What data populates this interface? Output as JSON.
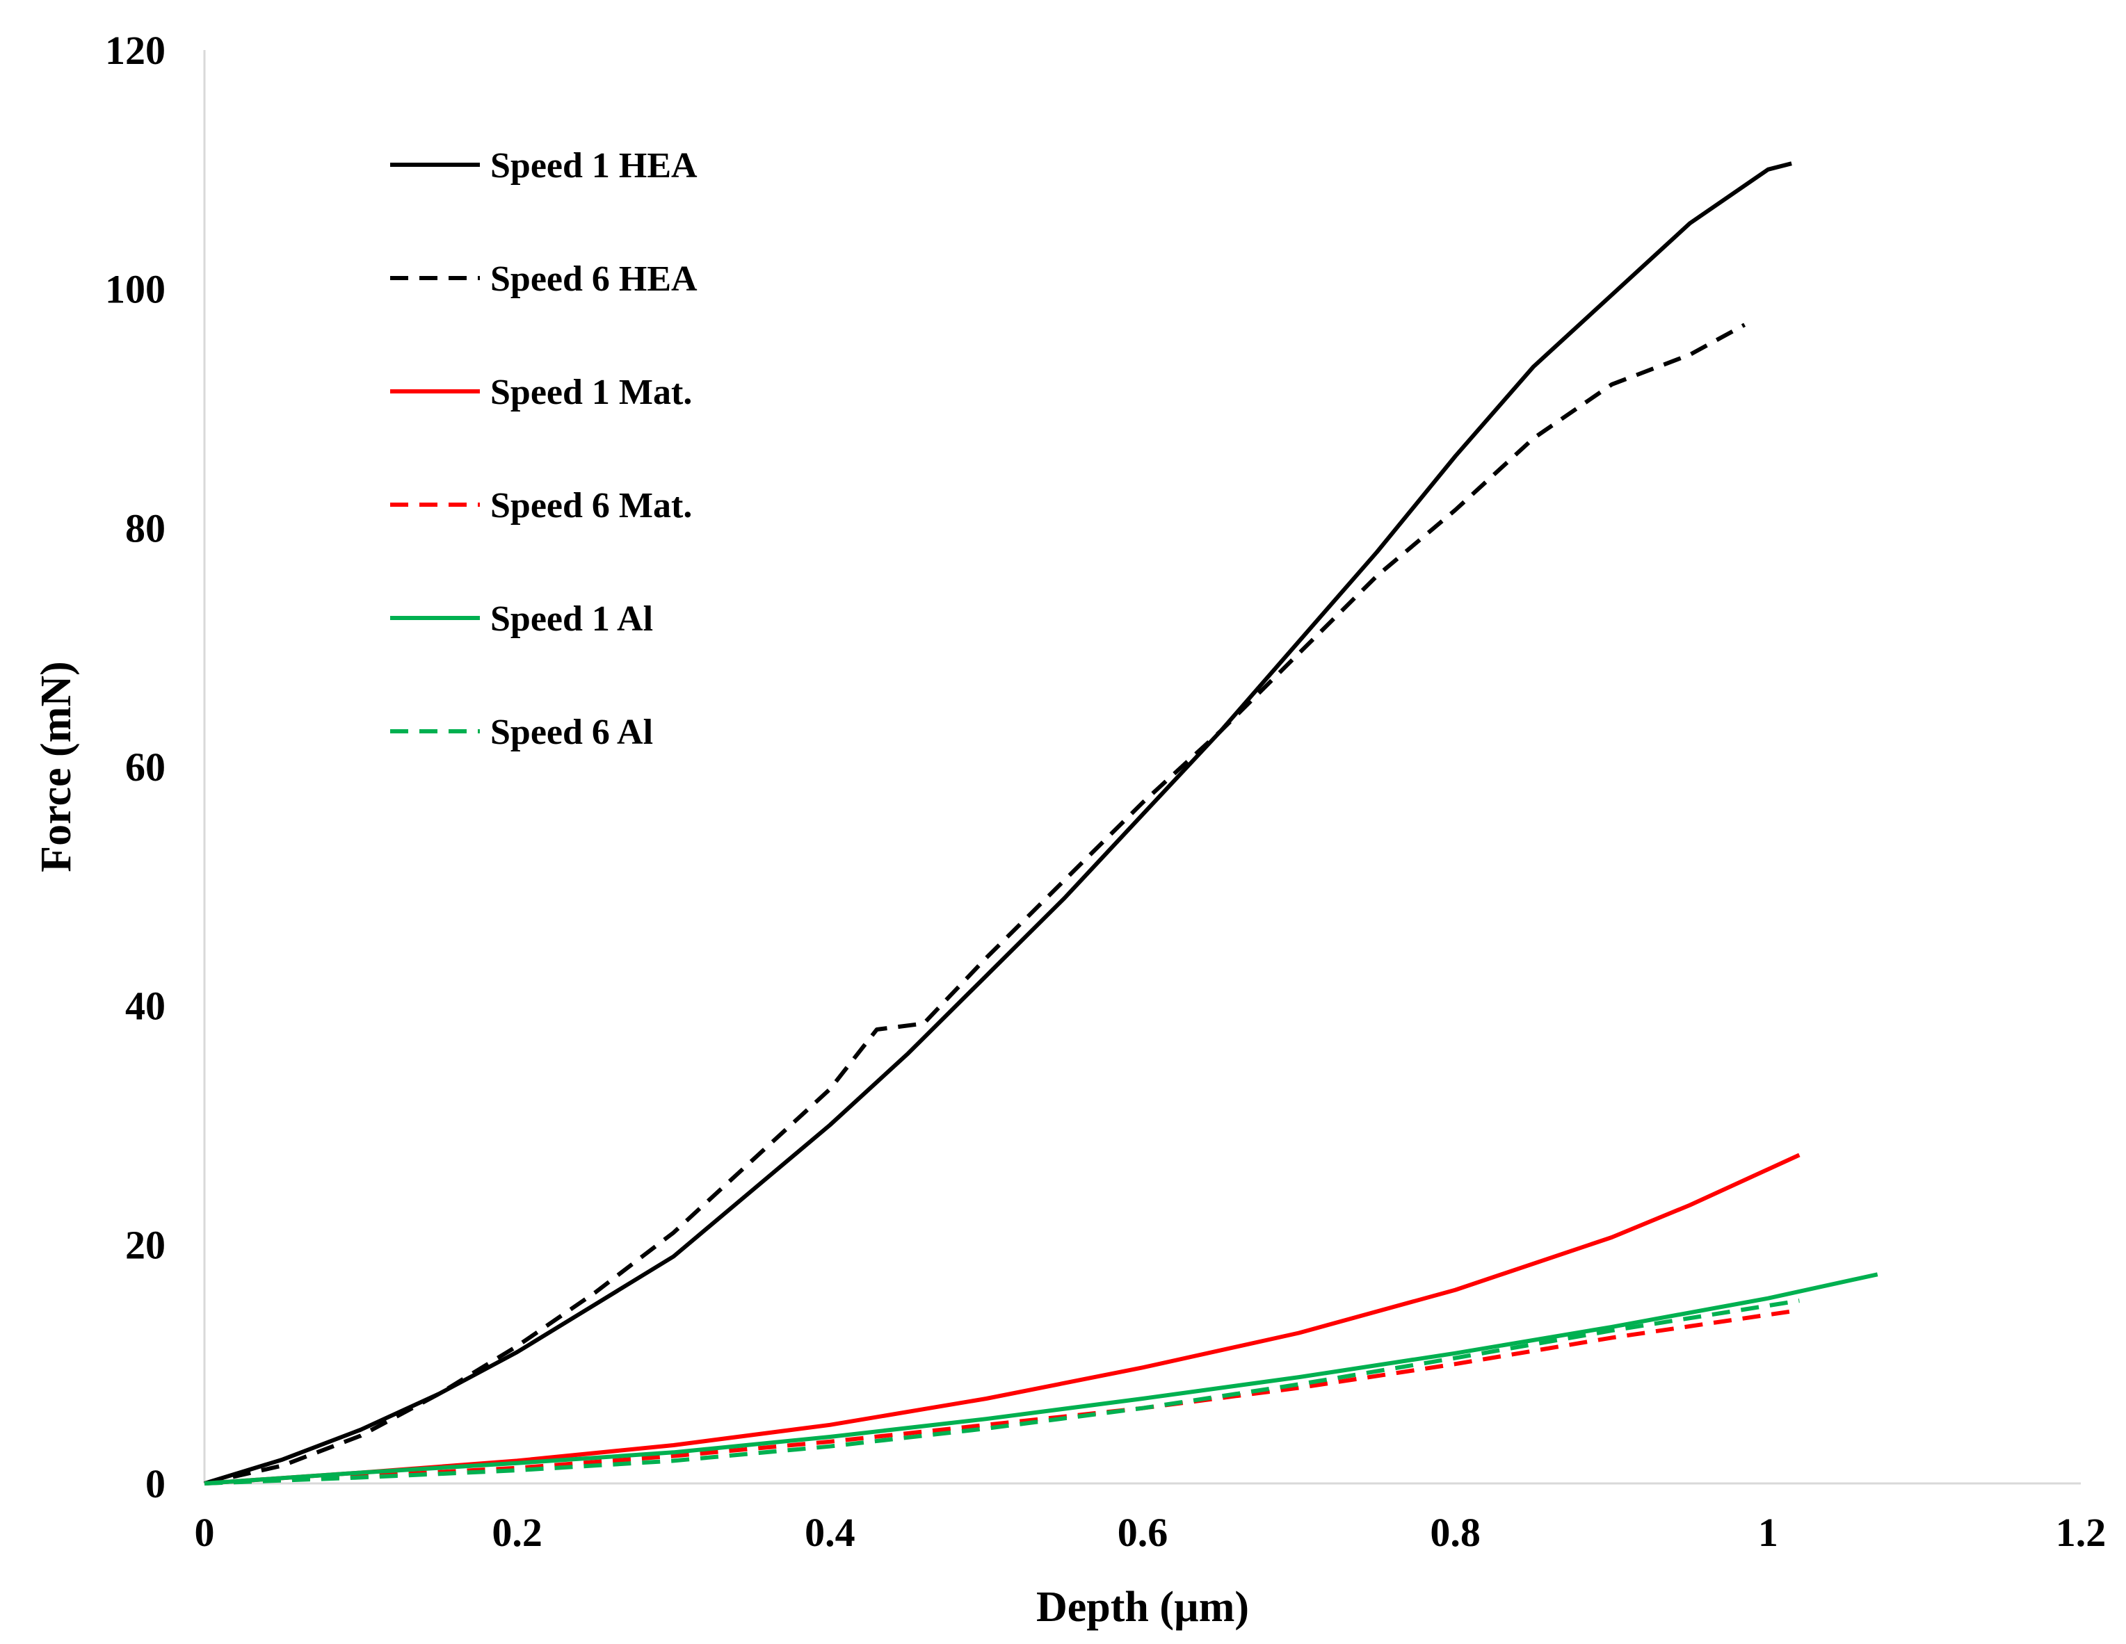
{
  "chart_data": {
    "type": "line",
    "title": "",
    "xlabel": "Depth (µm)",
    "ylabel": "Force (mN)",
    "xlim": [
      0,
      1.2
    ],
    "ylim": [
      0,
      120
    ],
    "xticks": [
      0,
      0.2,
      0.4,
      0.6,
      0.8,
      1,
      1.2
    ],
    "xtick_labels": [
      "0",
      "0.2",
      "0.4",
      "0.6",
      "0.8",
      "1",
      "1.2"
    ],
    "yticks": [
      0,
      20,
      40,
      60,
      80,
      100,
      120
    ],
    "ytick_labels": [
      "0",
      "20",
      "40",
      "60",
      "80",
      "100",
      "120"
    ],
    "grid": false,
    "legend_position": "top-left",
    "series": [
      {
        "name": "Speed 1 HEA",
        "color": "#000000",
        "dash": "solid",
        "x": [
          0,
          0.05,
          0.1,
          0.15,
          0.2,
          0.25,
          0.3,
          0.35,
          0.4,
          0.45,
          0.5,
          0.55,
          0.6,
          0.65,
          0.7,
          0.75,
          0.8,
          0.85,
          0.9,
          0.95,
          1.0,
          1.015
        ],
        "y": [
          0,
          2,
          4.5,
          7.5,
          11,
          15,
          19,
          24.5,
          30,
          36,
          42.5,
          49,
          56,
          63,
          70.5,
          78,
          86,
          93.5,
          99.5,
          105.5,
          110,
          110.5
        ]
      },
      {
        "name": "Speed 6 HEA",
        "color": "#000000",
        "dash": "dashed",
        "x": [
          0,
          0.05,
          0.1,
          0.15,
          0.2,
          0.25,
          0.3,
          0.35,
          0.4,
          0.43,
          0.46,
          0.5,
          0.55,
          0.6,
          0.65,
          0.7,
          0.75,
          0.8,
          0.85,
          0.9,
          0.95,
          0.985
        ],
        "y": [
          0,
          1.5,
          4,
          7.5,
          11.5,
          16,
          21,
          27,
          33,
          38,
          38.5,
          44,
          50.5,
          57,
          63,
          69.5,
          76,
          81.5,
          87.5,
          92,
          94.5,
          97
        ]
      },
      {
        "name": "Speed 1 Mat.",
        "color": "#ff0000",
        "dash": "solid",
        "x": [
          0,
          0.1,
          0.2,
          0.3,
          0.4,
          0.5,
          0.6,
          0.7,
          0.8,
          0.9,
          0.95,
          1.02
        ],
        "y": [
          0,
          0.9,
          1.9,
          3.2,
          4.9,
          7.1,
          9.7,
          12.6,
          16.2,
          20.6,
          23.3,
          27.5
        ]
      },
      {
        "name": "Speed 6 Mat.",
        "color": "#ff0000",
        "dash": "dashed",
        "x": [
          0,
          0.1,
          0.2,
          0.3,
          0.4,
          0.5,
          0.6,
          0.7,
          0.8,
          0.9,
          1.02
        ],
        "y": [
          0,
          0.6,
          1.3,
          2.3,
          3.5,
          4.9,
          6.3,
          8.0,
          10.0,
          12.2,
          14.5
        ]
      },
      {
        "name": "Speed 1 Al",
        "color": "#00b050",
        "dash": "solid",
        "x": [
          0,
          0.1,
          0.2,
          0.3,
          0.4,
          0.5,
          0.6,
          0.7,
          0.8,
          0.9,
          1.0,
          1.07
        ],
        "y": [
          0,
          0.9,
          1.7,
          2.6,
          3.9,
          5.4,
          7.1,
          8.9,
          10.9,
          13.1,
          15.5,
          17.5
        ]
      },
      {
        "name": "Speed 6 Al",
        "color": "#00b050",
        "dash": "dashed",
        "x": [
          0,
          0.1,
          0.2,
          0.3,
          0.4,
          0.5,
          0.6,
          0.7,
          0.8,
          0.9,
          1.02
        ],
        "y": [
          0,
          0.5,
          1.1,
          1.9,
          3.1,
          4.6,
          6.3,
          8.3,
          10.5,
          12.8,
          15.3
        ]
      }
    ]
  }
}
